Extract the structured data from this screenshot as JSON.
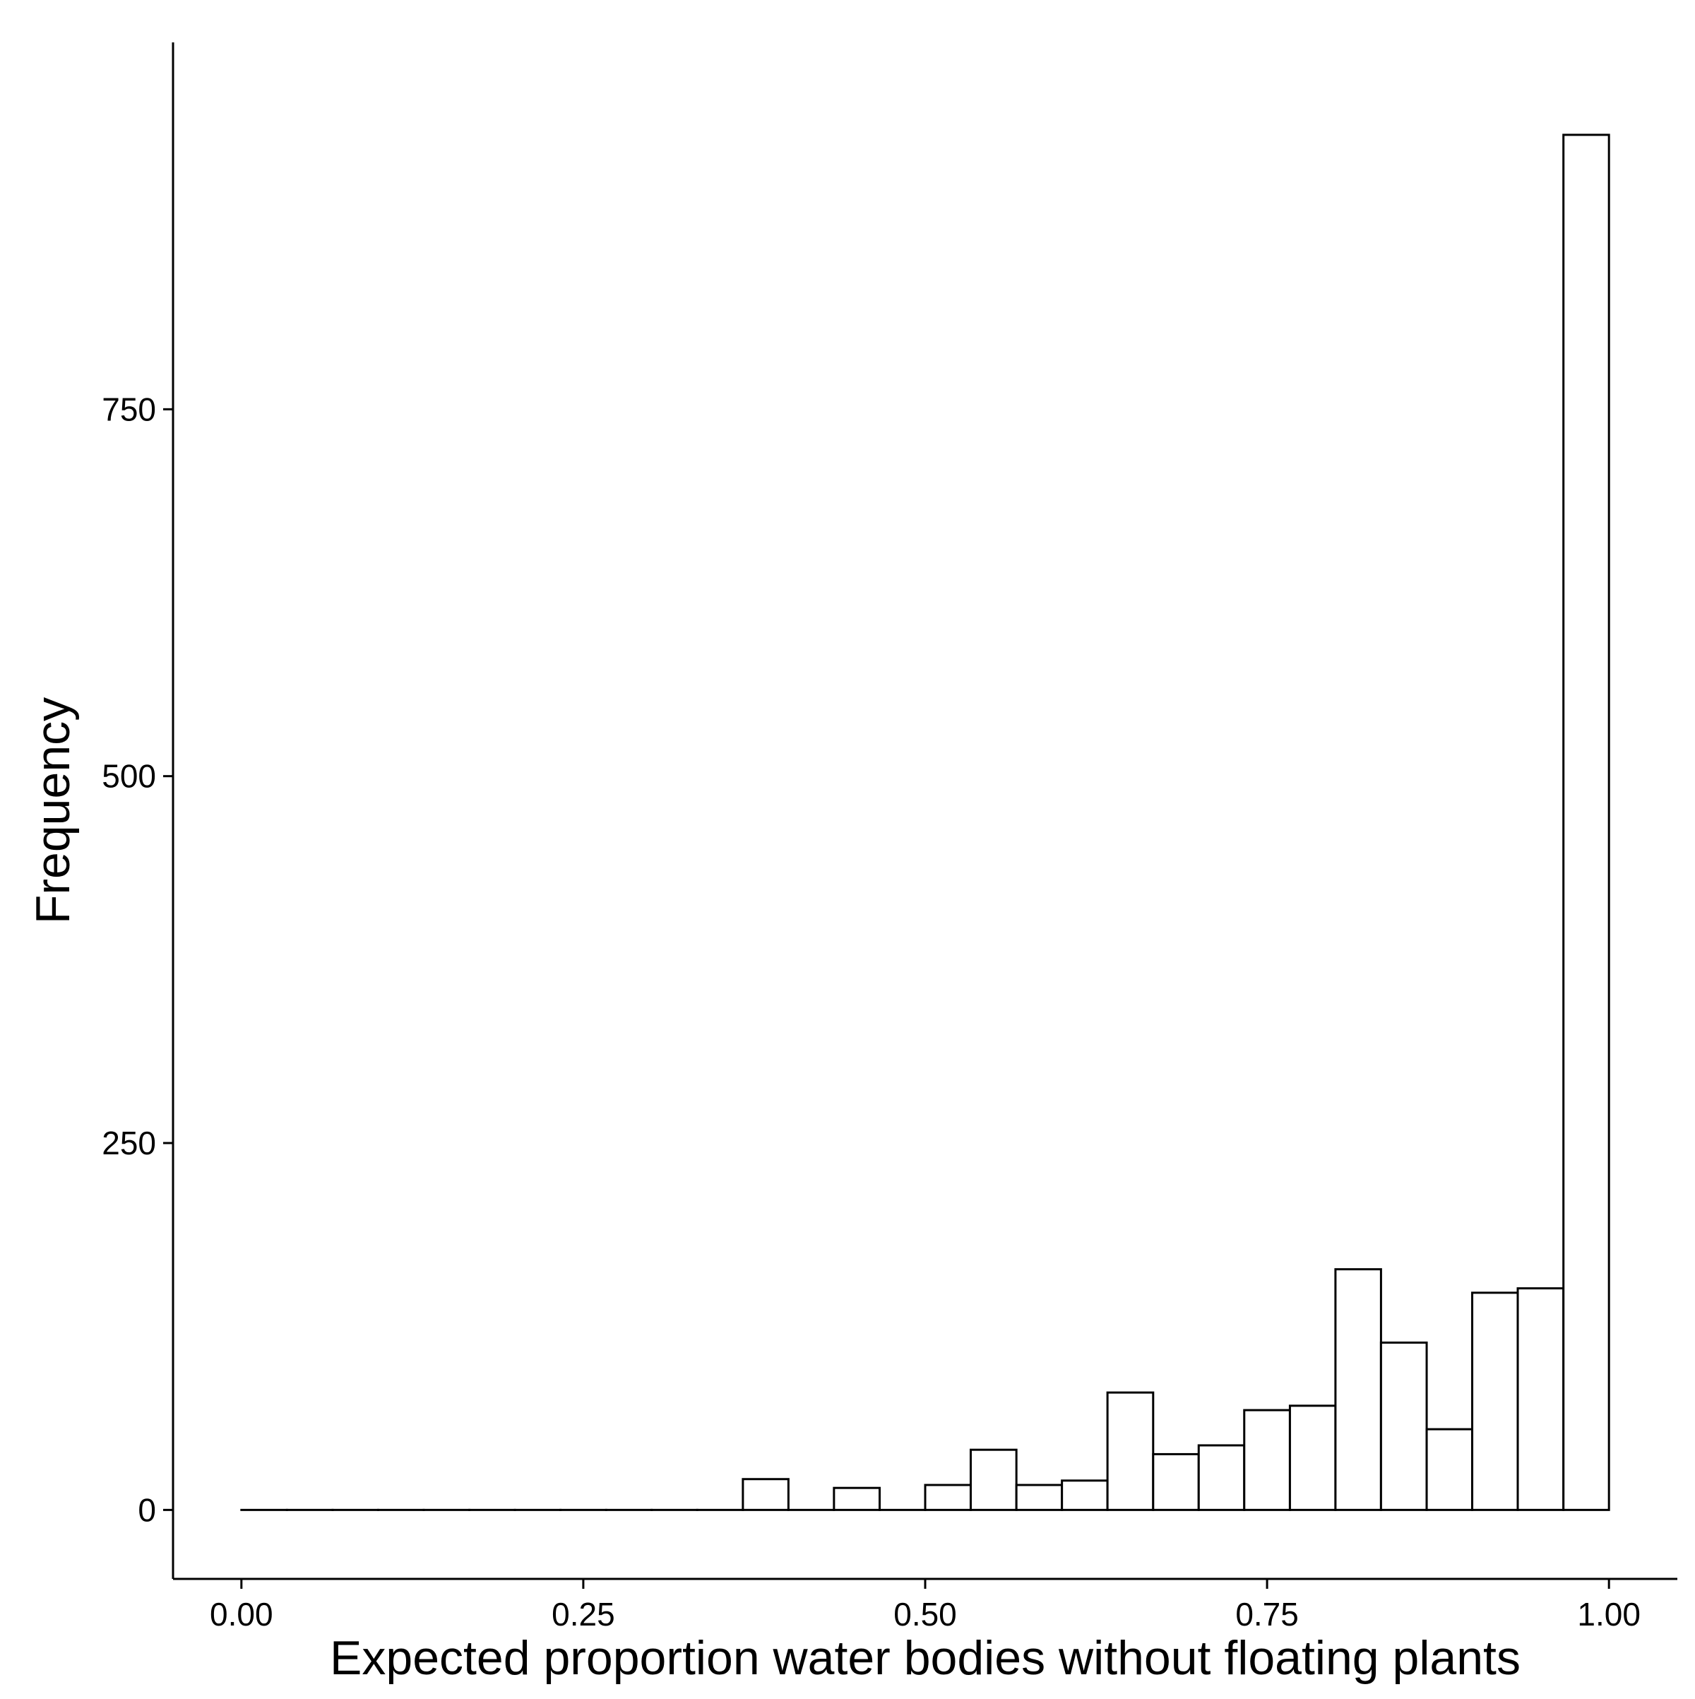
{
  "chart_data": {
    "type": "bar",
    "title": "",
    "xlabel": "Expected proportion water bodies without floating plants",
    "ylabel": "Frequency",
    "xlim": [
      -0.05,
      1.05
    ],
    "ylim": [
      -47,
      1000
    ],
    "x_ticks": [
      {
        "value": 0.0,
        "label": "0.00"
      },
      {
        "value": 0.25,
        "label": "0.25"
      },
      {
        "value": 0.5,
        "label": "0.50"
      },
      {
        "value": 0.75,
        "label": "0.75"
      },
      {
        "value": 1.0,
        "label": "1.00"
      }
    ],
    "y_ticks": [
      {
        "value": 0,
        "label": "0"
      },
      {
        "value": 250,
        "label": "250"
      },
      {
        "value": 500,
        "label": "500"
      },
      {
        "value": 750,
        "label": "750"
      }
    ],
    "bins": [
      {
        "x0": 0.0,
        "x1": 0.0333,
        "count": 0
      },
      {
        "x0": 0.0333,
        "x1": 0.0667,
        "count": 0
      },
      {
        "x0": 0.0667,
        "x1": 0.1,
        "count": 0
      },
      {
        "x0": 0.1,
        "x1": 0.1333,
        "count": 0
      },
      {
        "x0": 0.1333,
        "x1": 0.1667,
        "count": 0
      },
      {
        "x0": 0.1667,
        "x1": 0.2,
        "count": 0
      },
      {
        "x0": 0.2,
        "x1": 0.2333,
        "count": 0
      },
      {
        "x0": 0.2333,
        "x1": 0.2667,
        "count": 0
      },
      {
        "x0": 0.2667,
        "x1": 0.3,
        "count": 0
      },
      {
        "x0": 0.3,
        "x1": 0.3333,
        "count": 0
      },
      {
        "x0": 0.3333,
        "x1": 0.3667,
        "count": 0
      },
      {
        "x0": 0.3667,
        "x1": 0.4,
        "count": 21
      },
      {
        "x0": 0.4,
        "x1": 0.4333,
        "count": 0
      },
      {
        "x0": 0.4333,
        "x1": 0.4667,
        "count": 15
      },
      {
        "x0": 0.4667,
        "x1": 0.5,
        "count": 0
      },
      {
        "x0": 0.5,
        "x1": 0.5333,
        "count": 17
      },
      {
        "x0": 0.5333,
        "x1": 0.5667,
        "count": 41
      },
      {
        "x0": 0.5667,
        "x1": 0.6,
        "count": 17
      },
      {
        "x0": 0.6,
        "x1": 0.6333,
        "count": 20
      },
      {
        "x0": 0.6333,
        "x1": 0.6667,
        "count": 80
      },
      {
        "x0": 0.6667,
        "x1": 0.7,
        "count": 38
      },
      {
        "x0": 0.7,
        "x1": 0.7333,
        "count": 44
      },
      {
        "x0": 0.7333,
        "x1": 0.7667,
        "count": 68
      },
      {
        "x0": 0.7667,
        "x1": 0.8,
        "count": 71
      },
      {
        "x0": 0.8,
        "x1": 0.8333,
        "count": 164
      },
      {
        "x0": 0.8333,
        "x1": 0.8667,
        "count": 114
      },
      {
        "x0": 0.8667,
        "x1": 0.9,
        "count": 55
      },
      {
        "x0": 0.9,
        "x1": 0.9333,
        "count": 148
      },
      {
        "x0": 0.9333,
        "x1": 0.9667,
        "count": 151
      },
      {
        "x0": 0.9667,
        "x1": 1.0,
        "count": 937
      }
    ],
    "bar_fill": "#ffffff",
    "bar_stroke": "#000000",
    "grid": false,
    "legend": "none"
  }
}
